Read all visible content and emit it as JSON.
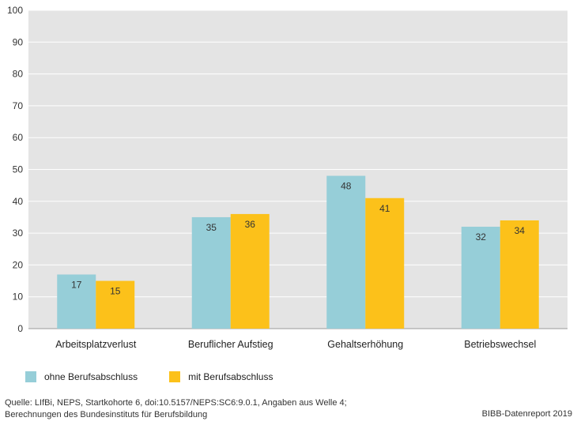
{
  "chart_data": {
    "type": "bar",
    "categories": [
      "Arbeitsplatzverlust",
      "Beruflicher Aufstieg",
      "Gehaltserhöhung",
      "Betriebswechsel"
    ],
    "series": [
      {
        "name": "ohne Berufsabschluss",
        "values": [
          17,
          35,
          48,
          32
        ],
        "color": "#96ced8"
      },
      {
        "name": "mit Berufsabschluss",
        "values": [
          15,
          36,
          41,
          34
        ],
        "color": "#fcc11a"
      }
    ],
    "ylim": [
      0,
      100
    ],
    "yticks": [
      0,
      10,
      20,
      30,
      40,
      50,
      60,
      70,
      80,
      90,
      100
    ],
    "grid": true,
    "legend_position": "bottom-left",
    "plot_background": "#e4e4e4"
  },
  "footer": {
    "source_line1": "Quelle: LIfBi, NEPS, Startkohorte 6, doi:10.5157/NEPS:SC6:9.0.1, Angaben aus Welle 4;",
    "source_line2": "Berechnungen des Bundesinstituts für Berufsbildung",
    "credit": "BIBB-Datenreport 2019"
  }
}
